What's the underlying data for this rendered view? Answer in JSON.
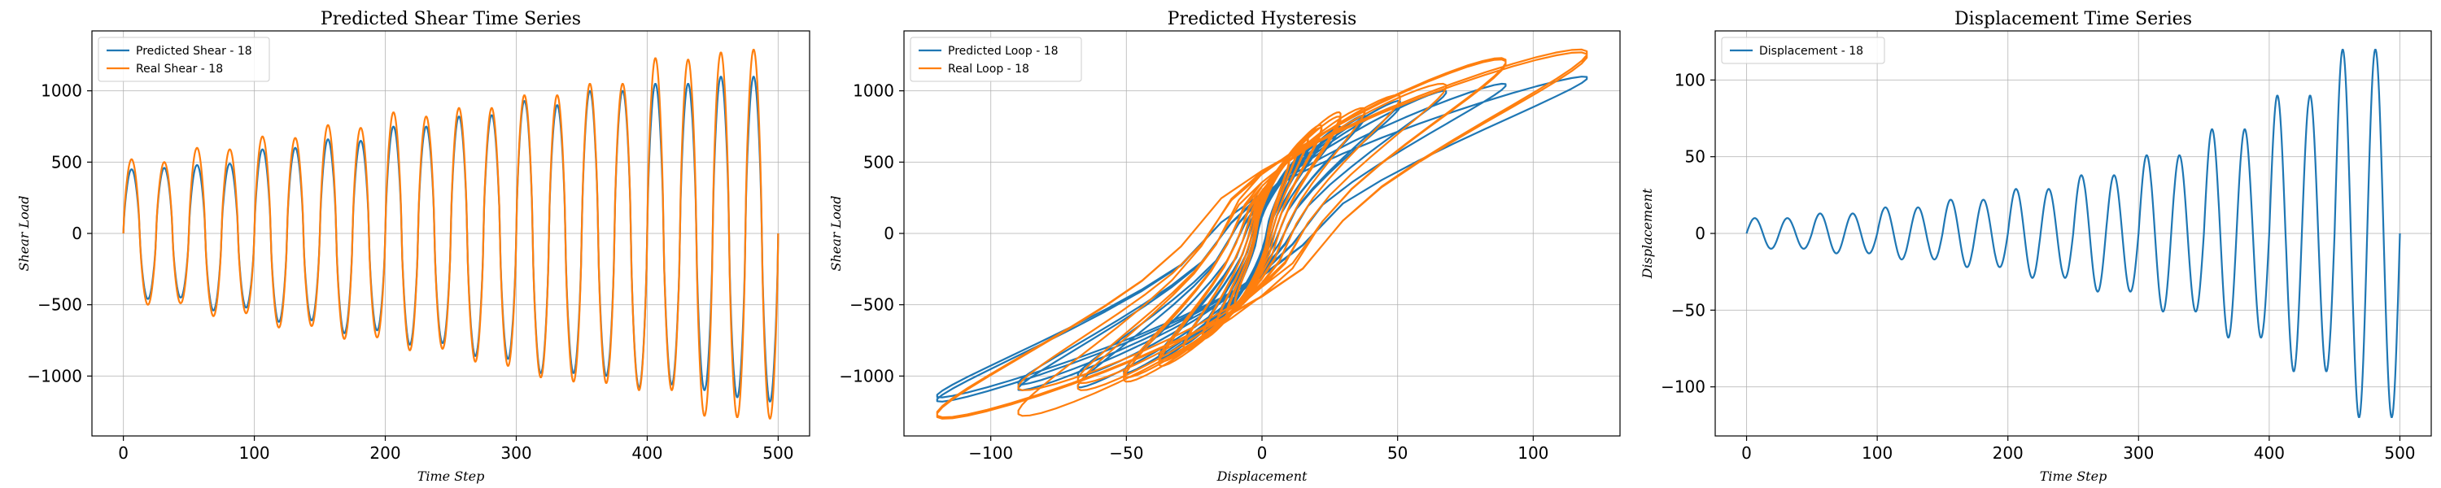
{
  "chart_data": [
    {
      "type": "line",
      "title": "Predicted Shear Time Series",
      "xlabel": "Time Step",
      "ylabel": "Shear Load",
      "xlim": [
        -24,
        524
      ],
      "ylim": [
        -1420,
        1420
      ],
      "xticks": [
        0,
        100,
        200,
        300,
        400,
        500
      ],
      "yticks": [
        -1000,
        -500,
        0,
        500,
        1000
      ],
      "xtick_labels": [
        "0",
        "100",
        "200",
        "300",
        "400",
        "500"
      ],
      "ytick_labels": [
        "−1000",
        "−500",
        "0",
        "500",
        "1000"
      ],
      "grid": true,
      "legend": "upper-left",
      "series": [
        {
          "name": "Predicted Shear - 18",
          "color": "#1f77b4",
          "peaks": [
            450,
            460,
            480,
            490,
            590,
            600,
            660,
            650,
            750,
            750,
            820,
            830,
            930,
            900,
            1000,
            1000,
            1050,
            1050,
            1100,
            1100
          ],
          "troughs": [
            -460,
            -450,
            -540,
            -520,
            -620,
            -610,
            -700,
            -680,
            -780,
            -770,
            -860,
            -880,
            -980,
            -980,
            -1000,
            -1080,
            -1060,
            -1100,
            -1150,
            -1180
          ]
        },
        {
          "name": "Real Shear - 18",
          "color": "#ff7f0e",
          "peaks": [
            520,
            500,
            600,
            590,
            680,
            670,
            760,
            740,
            850,
            820,
            880,
            880,
            970,
            970,
            1050,
            1050,
            1230,
            1220,
            1270,
            1290
          ],
          "troughs": [
            -500,
            -490,
            -580,
            -560,
            -660,
            -650,
            -740,
            -730,
            -820,
            -810,
            -900,
            -930,
            -1010,
            -1040,
            -1050,
            -1100,
            -1100,
            -1280,
            -1290,
            -1300
          ]
        }
      ]
    },
    {
      "type": "line",
      "title": "Predicted Hysteresis",
      "xlabel": "Displacement",
      "ylabel": "Shear Load",
      "xlim": [
        -132,
        132
      ],
      "ylim": [
        -1420,
        1420
      ],
      "xticks": [
        -100,
        -50,
        0,
        50,
        100
      ],
      "yticks": [
        -1000,
        -500,
        0,
        500,
        1000
      ],
      "xtick_labels": [
        "−100",
        "−50",
        "0",
        "50",
        "100"
      ],
      "ytick_labels": [
        "−1000",
        "−500",
        "0",
        "500",
        "1000"
      ],
      "grid": true,
      "legend": "upper-left",
      "series": [
        {
          "name": "Predicted Loop - 18",
          "color": "#1f77b4"
        },
        {
          "name": "Real Loop - 18",
          "color": "#ff7f0e"
        }
      ]
    },
    {
      "type": "line",
      "title": "Displacement Time Series",
      "xlabel": "Time Step",
      "ylabel": "Displacement",
      "xlim": [
        -24,
        524
      ],
      "ylim": [
        -132,
        132
      ],
      "xticks": [
        0,
        100,
        200,
        300,
        400,
        500
      ],
      "yticks": [
        -100,
        -50,
        0,
        50,
        100
      ],
      "xtick_labels": [
        "0",
        "100",
        "200",
        "300",
        "400",
        "500"
      ],
      "ytick_labels": [
        "−100",
        "−50",
        "0",
        "50",
        "100"
      ],
      "grid": true,
      "legend": "upper-left",
      "series": [
        {
          "name": "Displacement - 18",
          "color": "#1f77b4",
          "amplitudes": [
            10,
            10,
            13,
            13,
            17,
            17,
            22,
            22,
            29,
            29,
            38,
            38,
            51,
            51,
            68,
            68,
            90,
            90,
            120,
            120
          ]
        }
      ]
    }
  ]
}
